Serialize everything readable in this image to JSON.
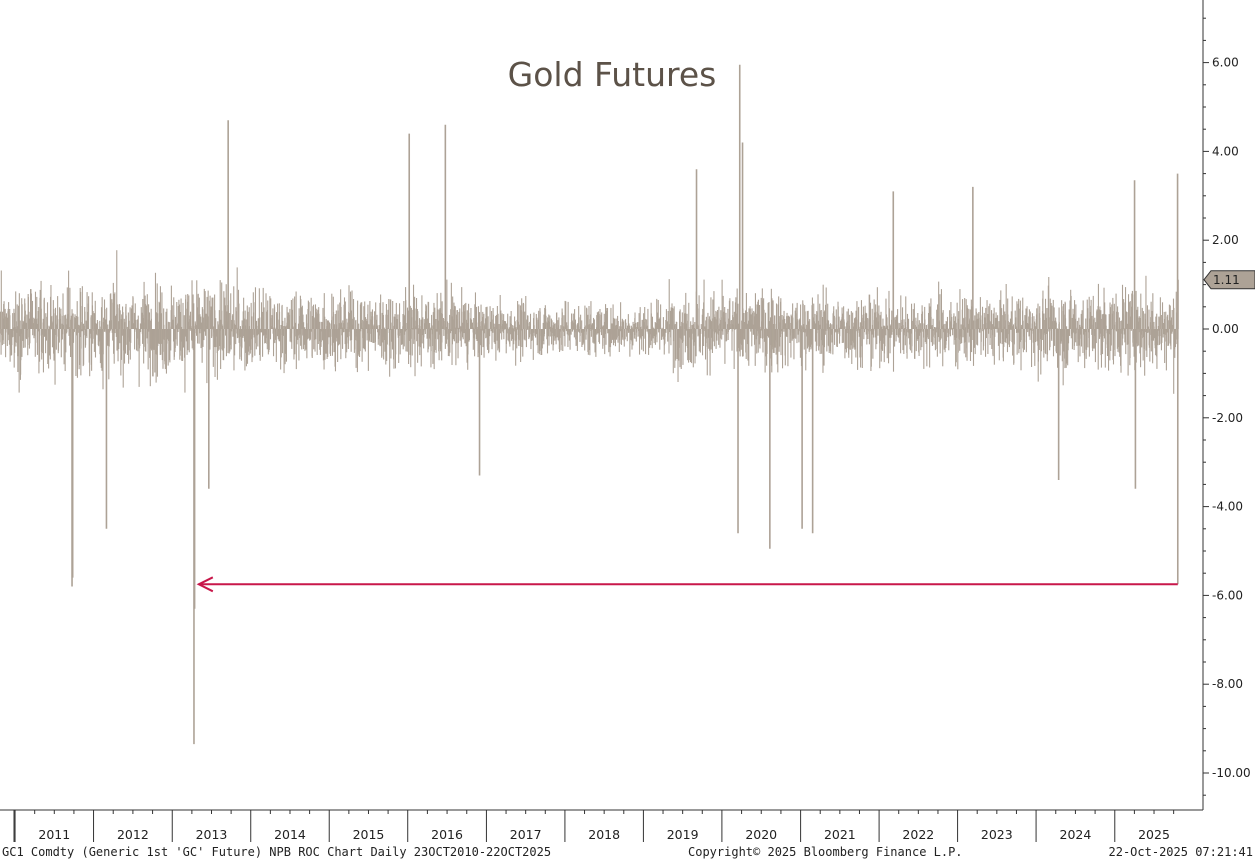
{
  "chart_data": {
    "type": "bar",
    "title": "Gold Futures",
    "x_range": [
      "2010-10-23",
      "2025-10-22"
    ],
    "year_labels": [
      "2011",
      "2012",
      "2013",
      "2014",
      "2015",
      "2016",
      "2017",
      "2018",
      "2019",
      "2020",
      "2021",
      "2022",
      "2023",
      "2024",
      "2025"
    ],
    "ylim": [
      -10.8,
      7.5
    ],
    "y_ticks": [
      {
        "value": 6,
        "label": "6.00"
      },
      {
        "value": 4,
        "label": "4.00"
      },
      {
        "value": 2,
        "label": "2.00"
      },
      {
        "value": 0,
        "label": "0.00"
      },
      {
        "value": -2,
        "label": "-2.00"
      },
      {
        "value": -4,
        "label": "-4.00"
      },
      {
        "value": -6,
        "label": "-6.00"
      },
      {
        "value": -8,
        "label": "-8.00"
      },
      {
        "value": -10,
        "label": "-10.00"
      }
    ],
    "last_value": 1.11,
    "last_value_label": "1.11",
    "series_color": "#ada296",
    "annotation": {
      "type": "arrow",
      "from_date": "2025-10-21",
      "to_date": "2013-04-16",
      "value": -5.75,
      "color": "#c8174a"
    },
    "notable_points": [
      {
        "date": "2011-09-23",
        "value": -5.8
      },
      {
        "date": "2011-09-26",
        "value": -5.6
      },
      {
        "date": "2012-03-01",
        "value": -4.5
      },
      {
        "date": "2013-04-12",
        "value": -9.35
      },
      {
        "date": "2013-04-15",
        "value": -6.3
      },
      {
        "date": "2013-06-20",
        "value": -3.6
      },
      {
        "date": "2013-09-18",
        "value": 4.7
      },
      {
        "date": "2016-06-24",
        "value": 4.6
      },
      {
        "date": "2016-01-08",
        "value": 4.4
      },
      {
        "date": "2016-11-30",
        "value": -3.3
      },
      {
        "date": "2019-09-05",
        "value": 3.6
      },
      {
        "date": "2020-03-16",
        "value": -4.6
      },
      {
        "date": "2020-03-24",
        "value": 5.95
      },
      {
        "date": "2020-04-06",
        "value": 4.2
      },
      {
        "date": "2020-08-11",
        "value": -4.95
      },
      {
        "date": "2021-01-08",
        "value": -4.5
      },
      {
        "date": "2021-02-26",
        "value": -4.6
      },
      {
        "date": "2022-03-08",
        "value": 3.1
      },
      {
        "date": "2023-03-13",
        "value": 3.2
      },
      {
        "date": "2024-04-15",
        "value": -3.4
      },
      {
        "date": "2025-04-03",
        "value": 3.35
      },
      {
        "date": "2025-04-07",
        "value": -3.6
      },
      {
        "date": "2025-10-20",
        "value": 3.5
      },
      {
        "date": "2025-10-21",
        "value": -5.75
      },
      {
        "date": "2025-10-22",
        "value": 1.11
      }
    ]
  },
  "footer": {
    "left": "GC1 Comdty (Generic 1st 'GC' Future) NPB ROC Chart Daily 23OCT2010-22OCT2025",
    "center": "Copyright© 2025 Bloomberg Finance L.P.",
    "right": "22-Oct-2025 07:21:41"
  },
  "colors": {
    "series": "#ada296",
    "arrow": "#c8174a",
    "title": "#5c5248",
    "axis": "#333333"
  }
}
